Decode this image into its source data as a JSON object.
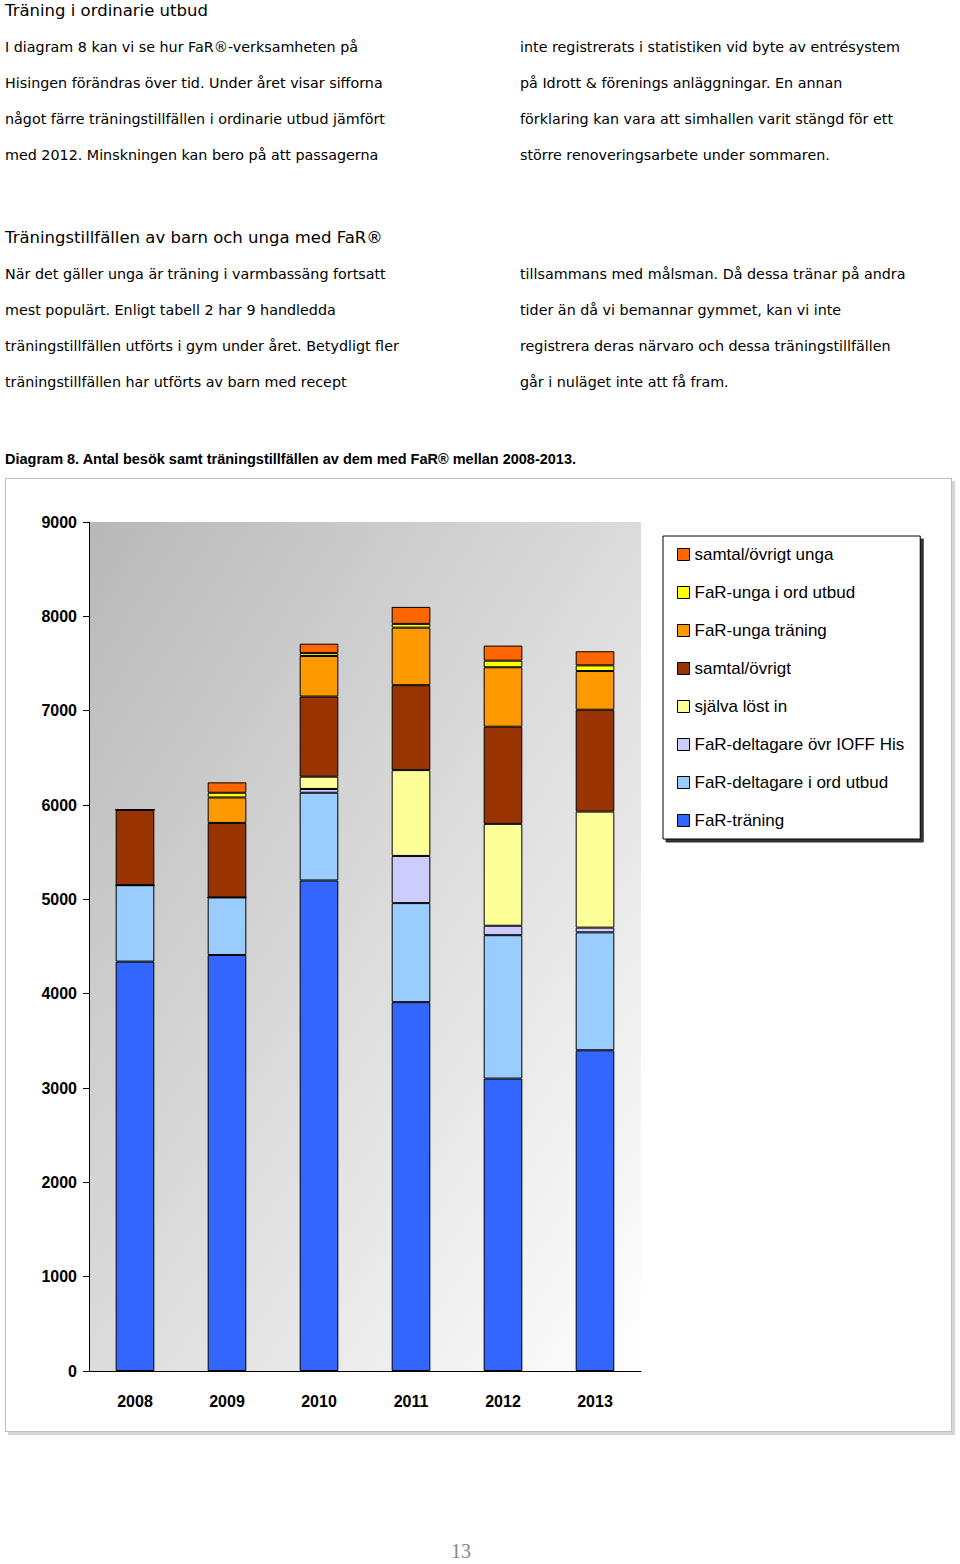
{
  "document": {
    "sections": [
      {
        "heading": "Träning i ordinarie utbud",
        "columns": [
          [
            "I diagram 8 kan vi se hur FaR®-verksamheten på",
            "Hisingen förändras över tid. Under året visar sifforna",
            "något färre träningstillfällen i ordinarie utbud jämfört",
            "med 2012. Minskningen kan bero på att passagerna"
          ],
          [
            "inte registrerats i statistiken vid byte av entrésystem",
            "på Idrott & förenings anläggningar. En annan",
            "förklaring kan vara att simhallen varit stängd för ett",
            "större renoveringsarbete under sommaren."
          ]
        ]
      },
      {
        "heading": "Träningstillfällen av barn och unga med FaR®",
        "columns": [
          [
            "När det gäller unga är träning i varmbassäng fortsatt",
            "mest populärt. Enligt tabell 2 har 9 handledda",
            "träningstillfällen utförts i gym under året. Betydligt fler",
            "träningstillfällen har utförts av barn med recept"
          ],
          [
            "tillsammans med målsman. Då dessa tränar på andra",
            "tider än då vi bemannar gymmet, kan vi inte",
            "registrera deras närvaro och dessa träningstillfällen",
            "går i nuläget inte att få fram."
          ]
        ]
      }
    ],
    "page_number": "13"
  },
  "chart_data": {
    "type": "bar",
    "title": "Diagram 8. Antal besök samt träningstillfällen av dem med FaR® mellan 2008-2013.",
    "categories": [
      "2008",
      "2009",
      "2010",
      "2011",
      "2012",
      "2013"
    ],
    "stacked": true,
    "grid": false,
    "legend": "right",
    "ylim": [
      0,
      9000
    ],
    "yticks": [
      0,
      1000,
      2000,
      3000,
      4000,
      5000,
      6000,
      7000,
      8000,
      9000
    ],
    "series": [
      {
        "name": "FaR-träning",
        "color": "#3366ff",
        "values": [
          4340,
          4410,
          5200,
          3910,
          3100,
          3400
        ]
      },
      {
        "name": "FaR-deltagare i ord utbud",
        "color": "#99ccff",
        "values": [
          810,
          610,
          930,
          1050,
          1520,
          1250
        ]
      },
      {
        "name": "FaR-deltagare övr IOFF His",
        "color": "#ccccff",
        "values": [
          0,
          0,
          40,
          500,
          100,
          50
        ]
      },
      {
        "name": "själva löst in",
        "color": "#ffff99",
        "values": [
          0,
          0,
          130,
          910,
          1080,
          1230
        ]
      },
      {
        "name": "samtal/övrigt",
        "color": "#993300",
        "values": [
          800,
          790,
          850,
          900,
          1030,
          1080
        ]
      },
      {
        "name": "FaR-unga träning",
        "color": "#ff9900",
        "values": [
          0,
          270,
          430,
          610,
          630,
          410
        ]
      },
      {
        "name": "FaR-unga i ord utbud",
        "color": "#ffff00",
        "values": [
          0,
          50,
          30,
          40,
          70,
          60
        ]
      },
      {
        "name": "samtal/övrigt unga",
        "color": "#ff6600",
        "values": [
          0,
          110,
          100,
          180,
          160,
          150
        ]
      }
    ]
  }
}
